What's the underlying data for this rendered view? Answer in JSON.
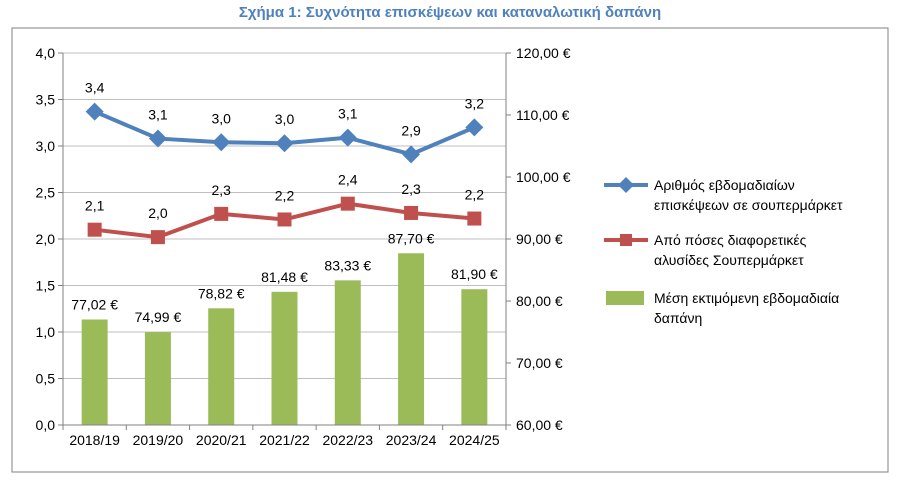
{
  "chart_data": {
    "type": "bar+line",
    "title": "Σχήμα 1: Συχνότητα επισκέψεων και καταναλωτική δαπάνη",
    "categories": [
      "2018/19",
      "2019/20",
      "2020/21",
      "2021/22",
      "2022/23",
      "2023/24",
      "2024/25"
    ],
    "left_axis": {
      "ylim": [
        0,
        4
      ],
      "ticks": [
        "0,0",
        "0,5",
        "1,0",
        "1,5",
        "2,0",
        "2,5",
        "3,0",
        "3,5",
        "4,0"
      ]
    },
    "right_axis": {
      "ylim": [
        60,
        120
      ],
      "ticks": [
        "60,00 €",
        "70,00 €",
        "80,00 €",
        "90,00 €",
        "100,00 €",
        "110,00 €",
        "120,00 €"
      ]
    },
    "grid": true,
    "legend_position": "right",
    "series": [
      {
        "name_lines": [
          "Αριθμός εβδομαδιαίων",
          "επισκέψεων σε σουπερμάρκετ"
        ],
        "type": "line",
        "axis": "left",
        "marker": "diamond",
        "color": "#4f81bd",
        "values": [
          3.37,
          3.08,
          3.04,
          3.03,
          3.09,
          2.91,
          3.2
        ],
        "labels": [
          "3,4",
          "3,1",
          "3,0",
          "3,0",
          "3,1",
          "2,9",
          "3,2"
        ]
      },
      {
        "name_lines": [
          "Από πόσες διαφορετικές",
          "αλυσίδες Σουπερμάρκετ"
        ],
        "type": "line",
        "axis": "left",
        "marker": "square",
        "color": "#c0504d",
        "values": [
          2.1,
          2.02,
          2.27,
          2.21,
          2.38,
          2.28,
          2.22
        ],
        "labels": [
          "2,1",
          "2,0",
          "2,3",
          "2,2",
          "2,4",
          "2,3",
          "2,2"
        ]
      },
      {
        "name_lines": [
          "Μέση εκτιμόμενη εβδομαδιαία",
          "δαπάνη"
        ],
        "type": "bar",
        "axis": "right",
        "color": "#9bbb59",
        "values": [
          77.02,
          74.99,
          78.82,
          81.48,
          83.33,
          87.7,
          81.9
        ],
        "labels": [
          "77,02 €",
          "74,99 €",
          "78,82 €",
          "81,48 €",
          "83,33 €",
          "87,70 €",
          "81,90 €"
        ]
      }
    ]
  }
}
